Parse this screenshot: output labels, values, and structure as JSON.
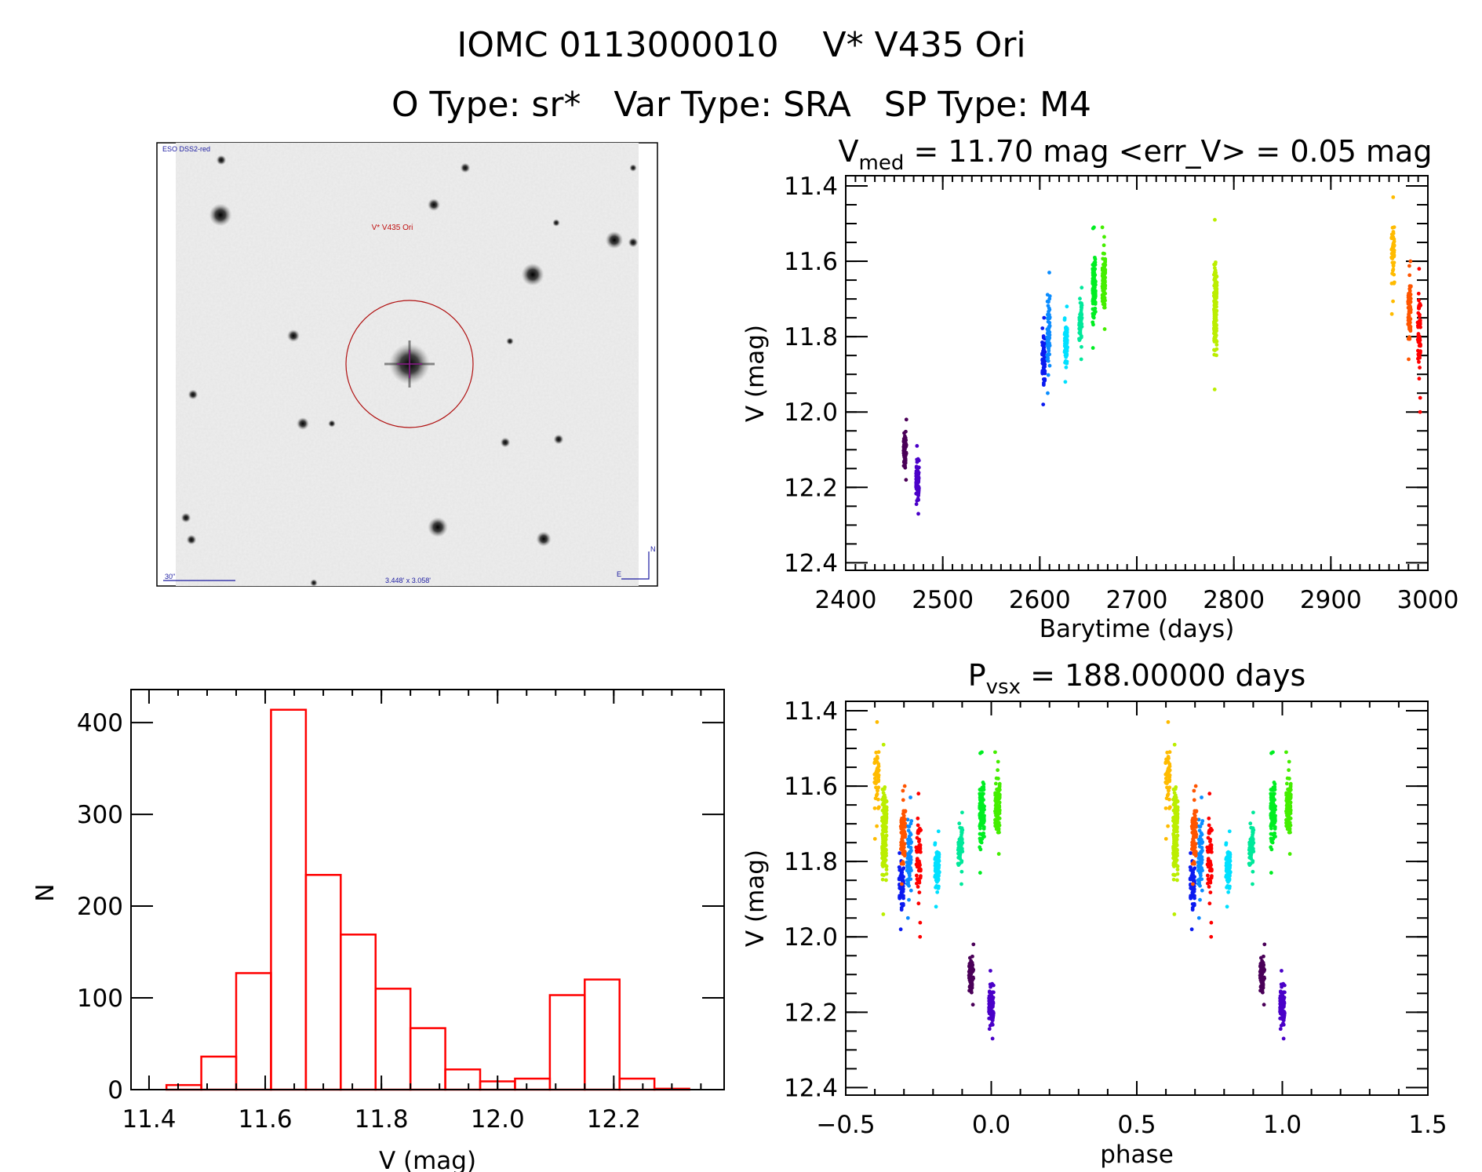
{
  "header": {
    "title": "IOMC 0113000010    V* V435 Ori",
    "subtitle": "O Type: sr*   Var Type: SRA   SP Type: M4"
  },
  "finder_image": {
    "survey_label": "ESO DSS2-red",
    "target_label": "V* V435 Ori",
    "scale_label": "30\"",
    "field_label": "3.448' x 3.058'",
    "north_label": "N",
    "east_label": "E",
    "colors": {
      "circle": "#b01010",
      "crosshair": "#8a1a8a",
      "labels": "#1a1aa0"
    }
  },
  "chart_data": [
    {
      "type": "scatter",
      "id": "light_curve",
      "title_main": "V",
      "title_sub": "med",
      "title_rest": " = 11.70 mag <err_V> = 0.05 mag",
      "xlabel": "Barytime (days)",
      "ylabel": "V (mag)",
      "xlim": [
        2400,
        3000
      ],
      "ylim": [
        12.42,
        11.373
      ],
      "y_inverted": true,
      "xticks": [
        "2400",
        "2500",
        "2600",
        "2700",
        "2800",
        "2900",
        "3000"
      ],
      "yticks": [
        "11.4",
        "11.6",
        "11.8",
        "12.0",
        "12.2",
        "12.4"
      ],
      "grid": false,
      "groups": [
        {
          "t": 2461,
          "V": [
            12.02,
            12.18
          ],
          "color": "#4a0058",
          "n": 70
        },
        {
          "t": 2474,
          "V": [
            12.09,
            12.27
          ],
          "color": "#4a00c8",
          "n": 80
        },
        {
          "t": 2604,
          "V": [
            11.75,
            11.98
          ],
          "color": "#0a1af0",
          "n": 60
        },
        {
          "t": 2609,
          "V": [
            11.63,
            11.95
          ],
          "color": "#0a8cff",
          "n": 70
        },
        {
          "t": 2627,
          "V": [
            11.72,
            11.92
          ],
          "color": "#00e0ff",
          "n": 70
        },
        {
          "t": 2642,
          "V": [
            11.67,
            11.86
          ],
          "color": "#00e89a",
          "n": 60
        },
        {
          "t": 2656,
          "V": [
            11.51,
            11.83
          ],
          "color": "#00ee22",
          "n": 110
        },
        {
          "t": 2666,
          "V": [
            11.51,
            11.78
          ],
          "color": "#44ee00",
          "n": 100
        },
        {
          "t": 2781,
          "V": [
            11.49,
            11.94
          ],
          "color": "#bbee00",
          "n": 160
        },
        {
          "t": 2964,
          "V": [
            11.43,
            11.74
          ],
          "color": "#ffbb00",
          "n": 50
        },
        {
          "t": 2981,
          "V": [
            11.6,
            11.86
          ],
          "color": "#ff5500",
          "n": 80
        },
        {
          "t": 2991,
          "V": [
            11.62,
            12.0
          ],
          "color": "#ff0000",
          "n": 60
        }
      ]
    },
    {
      "type": "histogram",
      "id": "magnitude_histogram",
      "xlabel": "V (mag)",
      "ylabel": "N",
      "xlim": [
        11.369,
        12.39
      ],
      "ylim": [
        0,
        436
      ],
      "xticks": [
        "11.4",
        "11.6",
        "11.8",
        "12.0",
        "12.2"
      ],
      "yticks": [
        "0",
        "100",
        "200",
        "300",
        "400"
      ],
      "bin_width": 0.06,
      "bin_starts": [
        11.43,
        11.49,
        11.55,
        11.61,
        11.67,
        11.73,
        11.79,
        11.85,
        11.91,
        11.97,
        12.03,
        12.09,
        12.15,
        12.21,
        12.27
      ],
      "counts": [
        5,
        36,
        127,
        414,
        234,
        169,
        110,
        67,
        22,
        9,
        12,
        103,
        120,
        12,
        1
      ],
      "color": "#ff0000"
    },
    {
      "type": "scatter",
      "id": "phased_light_curve",
      "title_main": "P",
      "title_sub": "vsx",
      "title_rest": " = 188.00000 days",
      "period_days": 188.0,
      "xlabel": "phase",
      "ylabel": "V (mag)",
      "xlim": [
        -0.5,
        1.5
      ],
      "ylim": [
        12.42,
        11.375
      ],
      "y_inverted": true,
      "xticks": [
        "−0.5",
        "0.0",
        "0.5",
        "1.0",
        "1.5"
      ],
      "yticks": [
        "11.4",
        "11.6",
        "11.8",
        "12.0",
        "12.2",
        "12.4"
      ],
      "grid": false
    }
  ]
}
